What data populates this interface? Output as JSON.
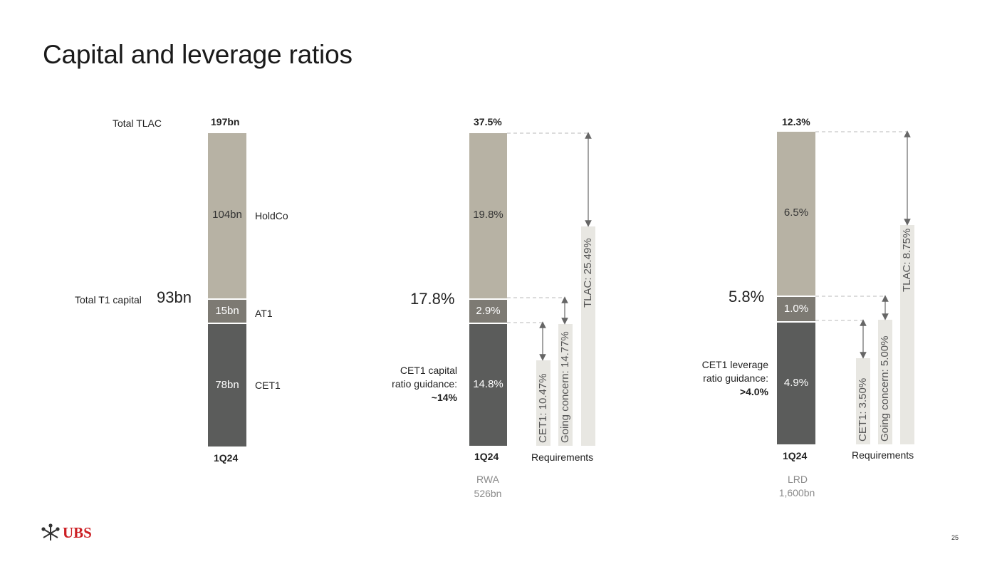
{
  "title": "Capital and leverage ratios",
  "page_number": "25",
  "logo": {
    "text": "UBS"
  },
  "colors": {
    "holdco": "#b7b2a4",
    "at1": "#7d7a73",
    "cet1": "#5b5c5b",
    "requirement": "#e8e7e2",
    "logo_red": "#cc1f24"
  },
  "tlac_panel": {
    "total_label": "Total TLAC",
    "total_value": "197bn",
    "t1_label": "Total T1 capital",
    "t1_value": "93bn",
    "period": "1Q24",
    "segments": [
      {
        "name": "HoldCo",
        "label": "104bn"
      },
      {
        "name": "AT1",
        "label": "15bn"
      },
      {
        "name": "CET1",
        "label": "78bn"
      }
    ]
  },
  "rwa_panel": {
    "total": "37.5%",
    "t1": "17.8%",
    "period": "1Q24",
    "footer_1": "RWA",
    "footer_2": "526bn",
    "guidance_1": "CET1 capital",
    "guidance_2": "ratio guidance:",
    "guidance_3": "~14%",
    "requirements_label": "Requirements",
    "segment_labels": [
      "19.8%",
      "2.9%",
      "14.8%"
    ],
    "requirements": [
      {
        "label": "CET1: 10.47%"
      },
      {
        "label": "Going concern: 14.77%"
      },
      {
        "label": "TLAC: 25.49%"
      }
    ]
  },
  "lrd_panel": {
    "total": "12.3%",
    "t1": "5.8%",
    "period": "1Q24",
    "footer_1": "LRD",
    "footer_2": "1,600bn",
    "guidance_1": "CET1 leverage",
    "guidance_2": "ratio guidance:",
    "guidance_3": ">4.0%",
    "requirements_label": "Requirements",
    "segment_labels": [
      "6.5%",
      "1.0%",
      "4.9%"
    ],
    "requirements": [
      {
        "label": "CET1: 3.50%"
      },
      {
        "label": "Going concern: 5.00%"
      },
      {
        "label": "TLAC: 8.75%"
      }
    ]
  },
  "chart_data": [
    {
      "type": "bar",
      "stacked": true,
      "title": "Total TLAC",
      "categories": [
        "1Q24"
      ],
      "unit": "bn",
      "series": [
        {
          "name": "CET1",
          "values": [
            78
          ]
        },
        {
          "name": "AT1",
          "values": [
            15
          ]
        },
        {
          "name": "HoldCo",
          "values": [
            104
          ]
        }
      ],
      "total": 197,
      "total_t1_capital": 93
    },
    {
      "type": "bar",
      "stacked": true,
      "title": "Capital ratios (RWA 526bn)",
      "categories": [
        "1Q24"
      ],
      "unit": "%",
      "series": [
        {
          "name": "CET1",
          "values": [
            14.8
          ]
        },
        {
          "name": "AT1",
          "values": [
            2.9
          ]
        },
        {
          "name": "HoldCo",
          "values": [
            19.8
          ]
        }
      ],
      "total": 37.5,
      "t1_ratio": 17.8,
      "requirements": [
        {
          "name": "CET1",
          "value": 10.47
        },
        {
          "name": "Going concern",
          "value": 14.77
        },
        {
          "name": "TLAC",
          "value": 25.49
        }
      ],
      "guidance": "~14%"
    },
    {
      "type": "bar",
      "stacked": true,
      "title": "Leverage ratios (LRD 1,600bn)",
      "categories": [
        "1Q24"
      ],
      "unit": "%",
      "series": [
        {
          "name": "CET1",
          "values": [
            4.9
          ]
        },
        {
          "name": "AT1",
          "values": [
            1.0
          ]
        },
        {
          "name": "HoldCo",
          "values": [
            6.5
          ]
        }
      ],
      "total": 12.3,
      "t1_ratio": 5.8,
      "requirements": [
        {
          "name": "CET1",
          "value": 3.5
        },
        {
          "name": "Going concern",
          "value": 5.0
        },
        {
          "name": "TLAC",
          "value": 8.75
        }
      ],
      "guidance": ">4.0%"
    }
  ]
}
